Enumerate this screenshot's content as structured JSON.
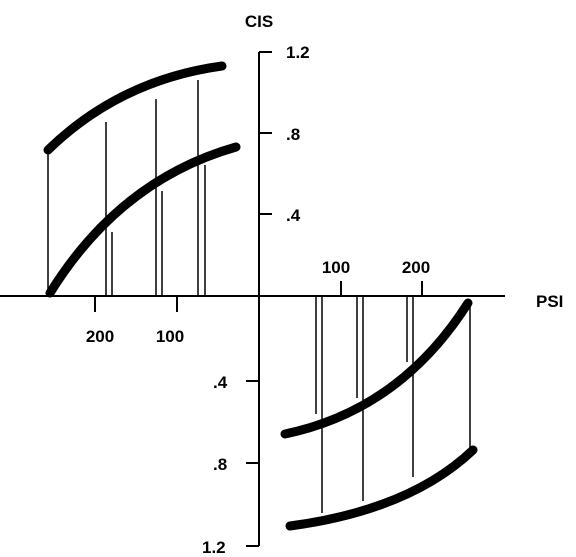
{
  "axes": {
    "y_title": "CIS",
    "x_title": "PSI",
    "y_ticks_top": [
      "1.2",
      ".8",
      ".4"
    ],
    "y_ticks_bottom": [
      ".4",
      ".8",
      "1.2"
    ],
    "x_ticks_right": [
      "100",
      "200"
    ],
    "x_ticks_left": [
      "200",
      "100"
    ]
  },
  "colors": {
    "ink": "#000000",
    "background": "#ffffff"
  }
}
